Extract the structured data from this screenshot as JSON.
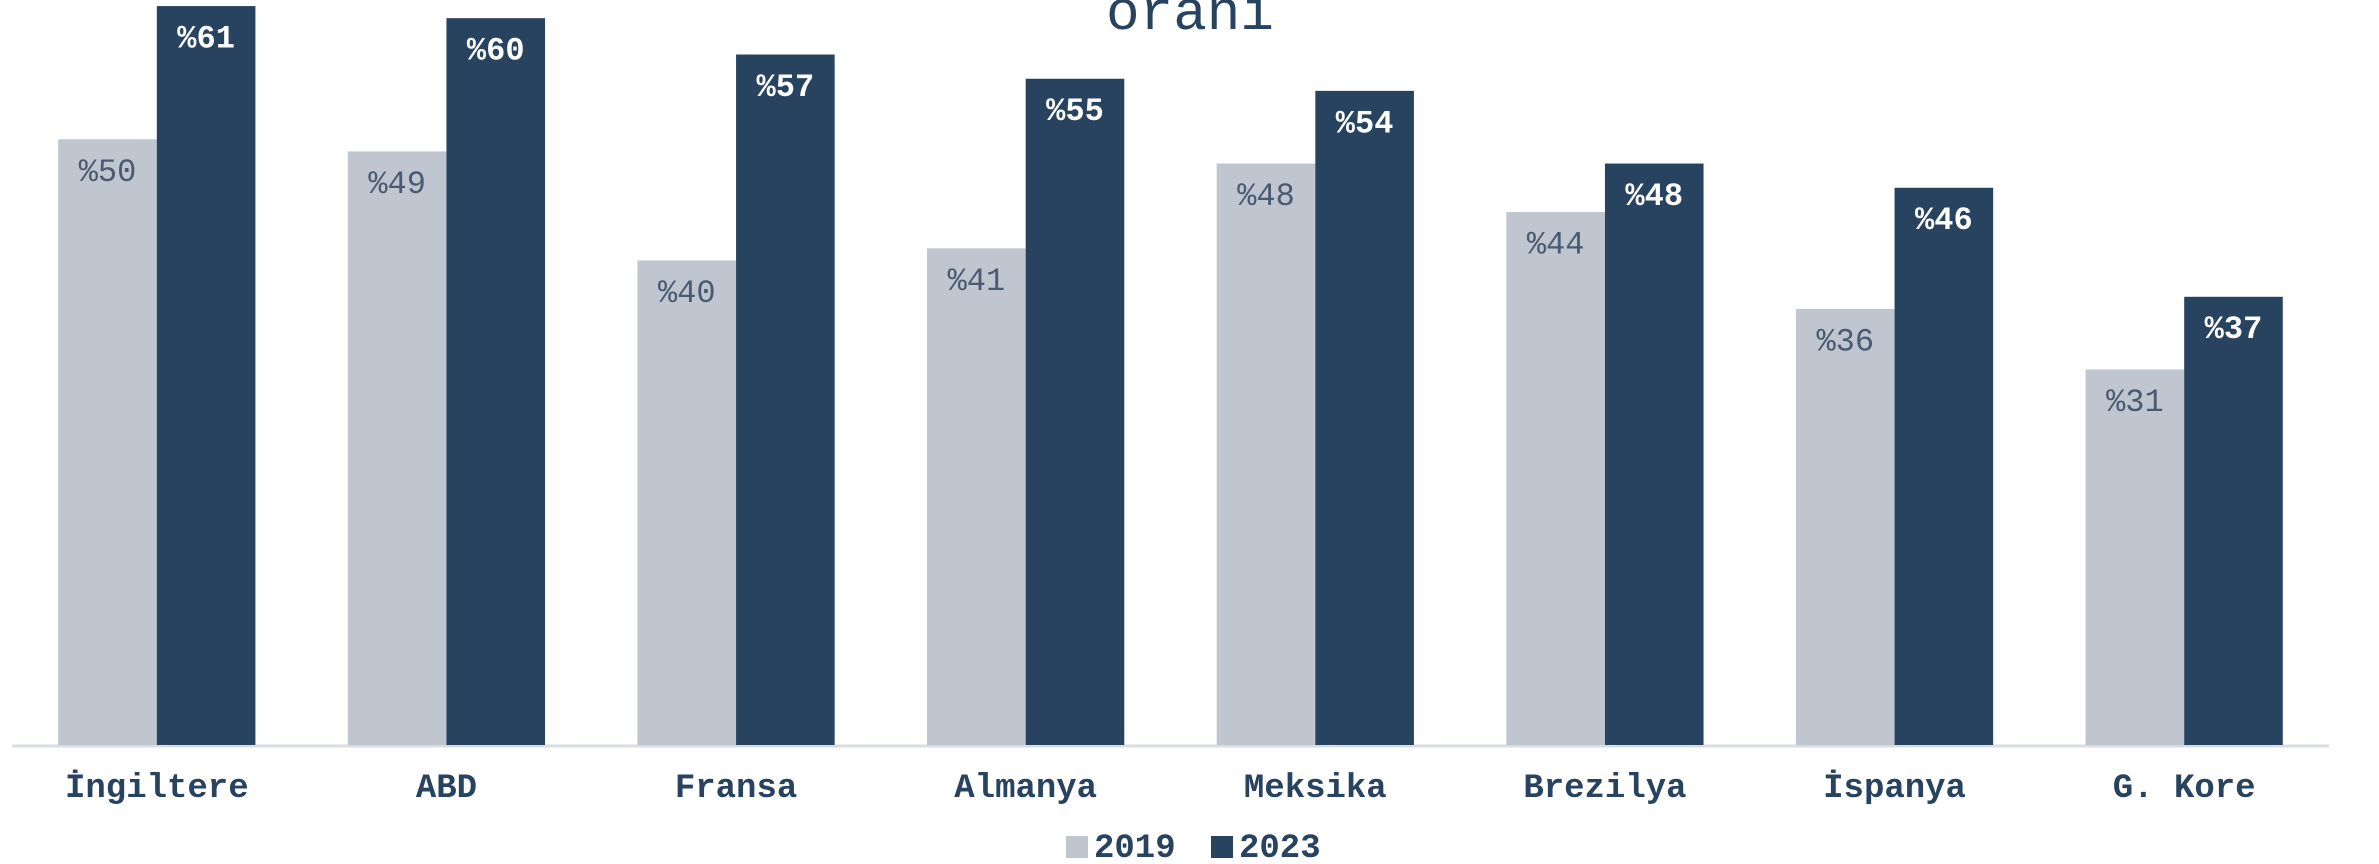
{
  "chart_data": {
    "type": "bar",
    "title": "oranı",
    "categories": [
      "İngiltere",
      "ABD",
      "Fransa",
      "Almanya",
      "Meksika",
      "Brezilya",
      "İspanya",
      "G. Kore"
    ],
    "series": [
      {
        "name": "2019",
        "color": "#bfc6d0",
        "values": [
          50,
          49,
          40,
          41,
          48,
          44,
          36,
          31
        ],
        "value_labels": [
          "%50",
          "%49",
          "%40",
          "%41",
          "%48",
          "%44",
          "%36",
          "%31"
        ]
      },
      {
        "name": "2023",
        "color": "#284360",
        "values": [
          61,
          60,
          57,
          55,
          54,
          48,
          46,
          37
        ],
        "value_labels": [
          "%61",
          "%60",
          "%57",
          "%55",
          "%54",
          "%48",
          "%46",
          "%37"
        ]
      }
    ],
    "ylim": [
      0,
      61.5
    ],
    "legend": "bottom"
  }
}
